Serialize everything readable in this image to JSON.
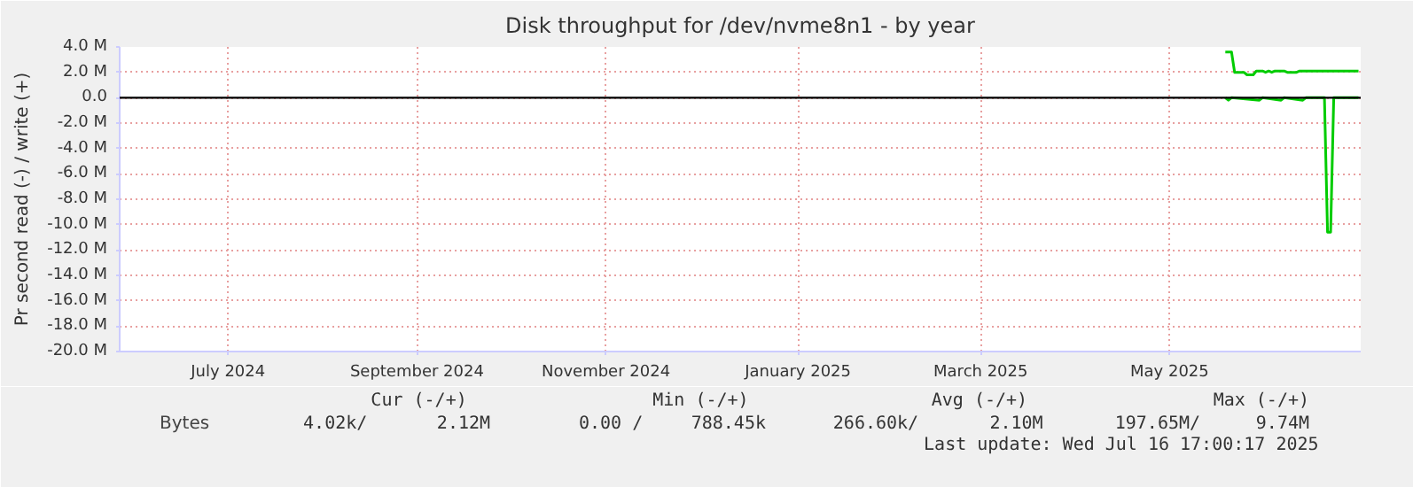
{
  "chart_data": {
    "type": "line",
    "title": "Disk throughput for /dev/nvme8n1 - by year",
    "ylabel": "Pr second read (-) / write (+)",
    "xlim": [
      "2024-06-11",
      "2025-07-16T17:00"
    ],
    "xticks": [
      {
        "value": "2024-07-16",
        "label": "July 2024"
      },
      {
        "value": "2024-09-15",
        "label": "September 2024"
      },
      {
        "value": "2024-11-15",
        "label": "November 2024"
      },
      {
        "value": "2025-01-16",
        "label": "January 2025"
      },
      {
        "value": "2025-03-16",
        "label": "March 2025"
      },
      {
        "value": "2025-05-16",
        "label": "May 2025"
      }
    ],
    "ylim": [
      -20,
      4
    ],
    "yticks": [
      {
        "value": 4,
        "label": "4.0 M"
      },
      {
        "value": 2,
        "label": "2.0 M"
      },
      {
        "value": 0,
        "label": "0.0"
      },
      {
        "value": -2,
        "label": "-2.0 M"
      },
      {
        "value": -4,
        "label": "-4.0 M"
      },
      {
        "value": -6,
        "label": "-6.0 M"
      },
      {
        "value": -8,
        "label": "-8.0 M"
      },
      {
        "value": -10,
        "label": "-10.0 M"
      },
      {
        "value": -12,
        "label": "-12.0 M"
      },
      {
        "value": -14,
        "label": "-14.0 M"
      },
      {
        "value": -16,
        "label": "-16.0 M"
      },
      {
        "value": -18,
        "label": "-18.0 M"
      },
      {
        "value": -20,
        "label": "-20.0 M"
      }
    ],
    "series": [
      {
        "name": "Bytes",
        "color": "#00cc00",
        "x": [
          "2025-06-03",
          "2025-06-05",
          "2025-06-06",
          "2025-06-09",
          "2025-06-10",
          "2025-06-12",
          "2025-06-13",
          "2025-06-15",
          "2025-06-16",
          "2025-06-17",
          "2025-06-18",
          "2025-06-19",
          "2025-06-22",
          "2025-06-23",
          "2025-06-26",
          "2025-06-27",
          "2025-07-16"
        ],
        "values": [
          3.6,
          3.6,
          2.0,
          2.0,
          1.8,
          1.8,
          2.1,
          2.1,
          2.0,
          2.1,
          2.0,
          2.1,
          2.1,
          2.0,
          2.0,
          2.1,
          2.1
        ]
      },
      {
        "color": "#00cc00",
        "x": [
          "2025-06-03",
          "2025-06-04",
          "2025-06-05",
          "2025-06-14",
          "2025-06-15",
          "2025-06-21",
          "2025-06-22",
          "2025-06-28",
          "2025-06-29",
          "2025-07-05",
          "2025-07-06",
          "2025-07-07",
          "2025-07-08",
          "2025-07-16"
        ],
        "values": [
          0,
          -0.2,
          0,
          -0.2,
          0,
          -0.2,
          0,
          -0.2,
          0,
          0,
          -10.6,
          -10.6,
          0,
          0
        ]
      }
    ],
    "ref_lines": [
      {
        "axis": "y",
        "value": 0,
        "color": "#000000"
      }
    ],
    "grid": true,
    "legend": "bottom left",
    "annotations": [
      "Cur (-/+)",
      "Min (-/+)",
      "Avg (-/+)",
      "Max (-/+)",
      "4.02k/",
      "2.12M",
      "0.00 /",
      "788.45k",
      "266.60k/",
      "2.10M",
      "197.65M/",
      "9.74M",
      "Last update: Wed Jul 16 17:00:17 2025"
    ]
  }
}
